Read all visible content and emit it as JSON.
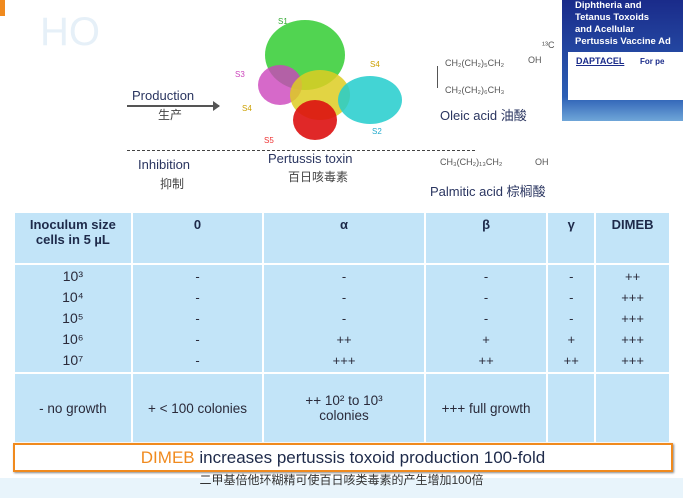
{
  "diagram": {
    "production": {
      "label": "Production",
      "zh": "生产"
    },
    "inhibition": {
      "label": "Inhibition",
      "zh": "抑制"
    },
    "toxin": {
      "label": "Pertussis toxin",
      "zh": "百日咳毒素",
      "subunits": [
        "S1",
        "S2",
        "S3",
        "S4",
        "S4",
        "S5"
      ]
    },
    "oleic": {
      "formula_top": "CH₂(CH₂)₅CH₂",
      "formula_c": "¹³C",
      "formula_oh": "OH",
      "formula_bottom": "CH₂(CH₂)₆CH₃",
      "label": "Oleic acid 油酸"
    },
    "palmitic": {
      "formula": "CH₃(CH₂)₁₃CH₂",
      "oh": "OH",
      "label": "Palmitic acid 棕榈酸"
    }
  },
  "vaccine_box": {
    "lines": [
      "Diphtheria and",
      "Tetanus Toxoids",
      "and Acellular",
      "Pertussis Vaccine Ad"
    ],
    "brand": "DAPTACEL",
    "note": "For pe"
  },
  "table": {
    "headers": [
      "Inoculum size cells in 5 µL",
      "0",
      "α",
      "β",
      "γ",
      "DIMEB"
    ],
    "rows_col0": "10³\n10⁴\n10⁵\n10⁶\n10⁷",
    "cols": [
      "-\n-\n-\n-\n-",
      "-\n-\n-\n++\n+++",
      "-\n-\n-\n+\n++",
      "-\n-\n-\n+\n++",
      "++\n+++\n+++\n+++\n+++"
    ],
    "legend": [
      "- no growth",
      "+ < 100 colonies",
      "++ 10² to 10³ colonies",
      "+++ full growth",
      "",
      ""
    ]
  },
  "banner": {
    "highlight": "DIMEB",
    "text": " increases pertussis toxoid production 100-fold",
    "zh": "二甲基倍他环糊精可使百日咳类毒素的产生增加100倍"
  },
  "colors": {
    "accent": "#f08a1e",
    "table_bg": "#c2e4f8",
    "navy": "#1e2a4a"
  }
}
